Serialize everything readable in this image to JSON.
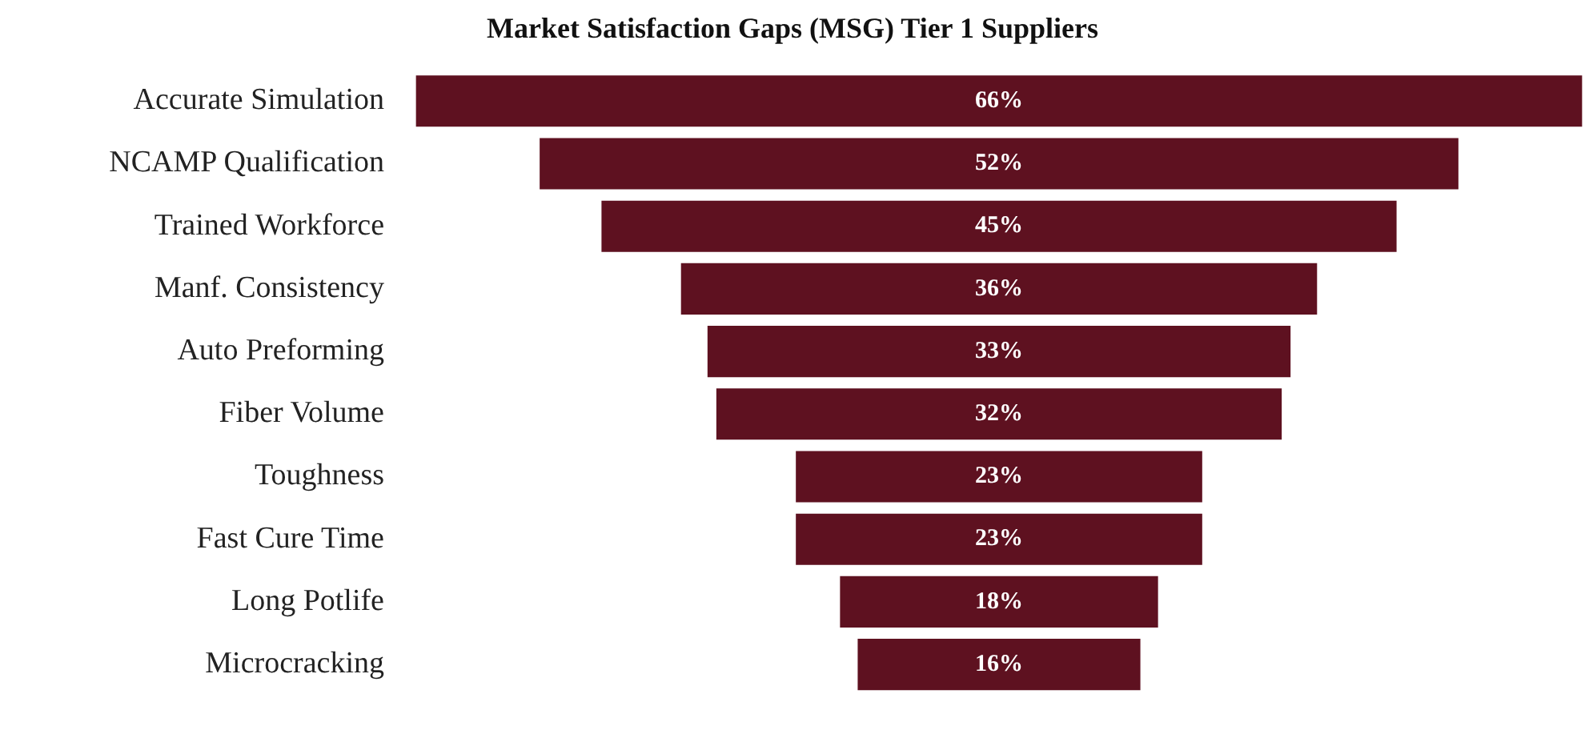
{
  "chart_data": {
    "type": "other",
    "title": "Market Satisfaction Gaps (MSG) Tier 1 Suppliers",
    "categories": [
      "Accurate Simulation",
      "NCAMP Qualification",
      "Trained Workforce",
      "Manf. Consistency",
      "Auto Preforming",
      "Fiber Volume",
      "Toughness",
      "Fast Cure Time",
      "Long Potlife",
      "Microcracking"
    ],
    "values": [
      66,
      52,
      45,
      36,
      33,
      32,
      23,
      23,
      18,
      16
    ],
    "value_labels": [
      "66%",
      "52%",
      "45%",
      "36%",
      "33%",
      "32%",
      "23%",
      "23%",
      "18%",
      "16%"
    ],
    "color": "#5e1120",
    "data_labels": true
  }
}
